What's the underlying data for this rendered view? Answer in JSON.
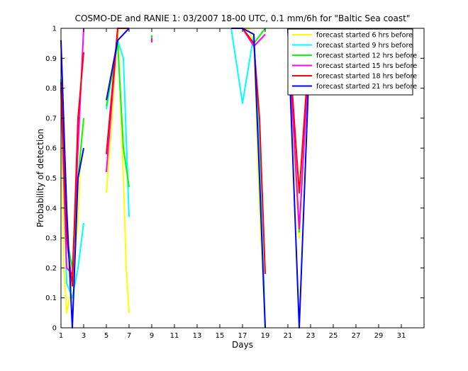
{
  "chart_data": {
    "type": "line",
    "title": "COSMO-DE and RANIE 1: 03/2007 18-00 UTC, 0.1 mm/6h for \"Baltic Sea coast\"",
    "xlabel": "Days",
    "ylabel": "Probability of detection",
    "xlim": [
      1,
      33
    ],
    "ylim": [
      0,
      1
    ],
    "xticks": [
      1,
      3,
      5,
      7,
      9,
      11,
      13,
      15,
      17,
      19,
      21,
      23,
      25,
      27,
      29,
      31
    ],
    "yticks": [
      0,
      0.1,
      0.2,
      0.3,
      0.4,
      0.5,
      0.6,
      0.7,
      0.8,
      0.9,
      1
    ],
    "ytick_labels": [
      "0",
      "0.1",
      "0.2",
      "0.3",
      "0.4",
      "0.5",
      "0.6",
      "0.7",
      "0.8",
      "0.9",
      "1"
    ],
    "legend_position": "top-right",
    "grid": false,
    "series": [
      {
        "name": "forecast started 6 hrs before",
        "color": "#ffff00",
        "points": [
          [
            1,
            0.82
          ],
          [
            1.25,
            0.2
          ],
          [
            1.5,
            0.05
          ],
          [
            1.75,
            0.1
          ],
          [
            2,
            0.15
          ],
          [
            2.25,
            0.25
          ],
          [
            2.5,
            0.35
          ],
          [
            2.75,
            0.6
          ],
          [
            3,
            0.69
          ],
          null,
          [
            5,
            0.45
          ],
          [
            5.5,
            0.7
          ],
          [
            6,
            1.0
          ],
          [
            6.5,
            0.5
          ],
          [
            6.75,
            0.2
          ],
          [
            7,
            0.05
          ],
          null,
          [
            16,
            1.0
          ],
          [
            17,
            1.0
          ],
          [
            17.5,
            1.0
          ],
          [
            18,
            0.95
          ],
          [
            18.5,
            0.4
          ],
          [
            19,
            0.0
          ],
          null,
          [
            21,
            1.0
          ],
          [
            21.5,
            0.6
          ],
          [
            22,
            0.3
          ],
          [
            22.5,
            0.7
          ],
          [
            23,
            1.0
          ]
        ]
      },
      {
        "name": "forecast started 9 hrs before",
        "color": "#00ffff",
        "points": [
          [
            1,
            0.8
          ],
          [
            1.5,
            0.15
          ],
          [
            2,
            0.1
          ],
          [
            2.5,
            0.2
          ],
          [
            3,
            0.35
          ],
          null,
          [
            5,
            0.73
          ],
          [
            6,
            0.96
          ],
          [
            6.5,
            0.9
          ],
          [
            7,
            0.37
          ],
          null,
          [
            16,
            1.0
          ],
          [
            17,
            0.75
          ],
          [
            18,
            0.98
          ],
          [
            18.5,
            0.6
          ],
          [
            19,
            0.0
          ],
          null,
          [
            21,
            1.0
          ],
          [
            22,
            0.78
          ],
          [
            23,
            1.0
          ]
        ]
      },
      {
        "name": "forecast started 12 hrs before",
        "color": "#00ff00",
        "points": [
          [
            1,
            0.83
          ],
          [
            1.5,
            0.3
          ],
          [
            2,
            0.2
          ],
          [
            2.5,
            0.5
          ],
          [
            3,
            0.7
          ],
          null,
          [
            5,
            0.74
          ],
          [
            6,
            0.95
          ],
          [
            6.5,
            0.6
          ],
          [
            7,
            0.47
          ],
          null,
          [
            9,
            0.97
          ],
          null,
          [
            16,
            1.0
          ],
          [
            17,
            1.0
          ],
          [
            18,
            0.95
          ],
          [
            19,
            1.0
          ],
          null,
          [
            21,
            1.0
          ],
          [
            22,
            0.32
          ],
          [
            23,
            1.0
          ]
        ]
      },
      {
        "name": "forecast started 15 hrs before",
        "color": "#ff00ff",
        "points": [
          [
            1,
            0.8
          ],
          [
            1.5,
            0.2
          ],
          [
            2,
            0.18
          ],
          [
            2.5,
            0.6
          ],
          [
            3,
            1.0
          ],
          null,
          [
            5,
            0.52
          ],
          [
            6,
            1.0
          ],
          [
            6.5,
            1.0
          ],
          [
            7,
            1.0
          ],
          null,
          [
            9,
            0.96
          ],
          null,
          [
            16,
            1.0
          ],
          [
            17,
            1.0
          ],
          [
            18,
            0.94
          ],
          [
            19,
            0.98
          ],
          null,
          [
            21,
            1.0
          ],
          [
            22,
            0.33
          ],
          [
            23,
            1.0
          ]
        ]
      },
      {
        "name": "forecast started 18 hrs before",
        "color": "#ff0000",
        "points": [
          [
            1,
            0.82
          ],
          [
            1.5,
            0.3
          ],
          [
            2,
            0.14
          ],
          [
            2.5,
            0.7
          ],
          [
            3,
            0.92
          ],
          null,
          [
            5,
            0.58
          ],
          [
            6,
            1.0
          ],
          [
            6.5,
            1.0
          ],
          [
            7,
            1.0
          ],
          null,
          [
            16,
            1.0
          ],
          [
            17,
            1.0
          ],
          [
            18,
            0.95
          ],
          [
            18.5,
            0.7
          ],
          [
            19,
            0.18
          ],
          null,
          [
            21,
            1.0
          ],
          [
            22,
            0.45
          ],
          [
            23,
            1.0
          ]
        ]
      },
      {
        "name": "forecast started 21 hrs before",
        "color": "#0000ff",
        "points": [
          [
            1,
            0.96
          ],
          [
            1.5,
            0.4
          ],
          [
            2,
            0.0
          ],
          [
            2.5,
            0.5
          ],
          [
            3,
            0.6
          ],
          null,
          [
            5,
            0.76
          ],
          [
            6,
            0.96
          ],
          [
            7,
            1.0
          ],
          null,
          [
            16,
            1.0
          ],
          [
            17,
            1.0
          ],
          [
            18,
            0.98
          ],
          [
            18.5,
            0.5
          ],
          [
            19,
            0.0
          ],
          null,
          [
            21,
            1.0
          ],
          [
            22,
            0.0
          ],
          [
            23,
            1.0
          ]
        ]
      }
    ]
  }
}
